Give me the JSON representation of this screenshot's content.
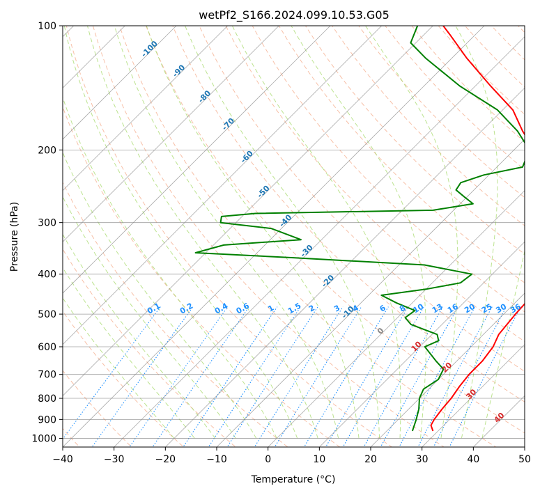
{
  "chart_data": {
    "type": "line",
    "subtype": "skew-t log-p diagram",
    "title": "wetPf2_S166.2024.099.10.53.G05",
    "xlabel": "Temperature (°C)",
    "ylabel": "Pressure (hPa)",
    "xlim": [
      -40,
      50
    ],
    "ylim": [
      1050,
      100
    ],
    "y_scale": "log",
    "x_ticks": [
      -40,
      -30,
      -20,
      -10,
      0,
      10,
      20,
      30,
      40,
      50
    ],
    "y_ticks": [
      100,
      200,
      300,
      400,
      500,
      600,
      700,
      800,
      900,
      1000
    ],
    "grid": true,
    "series": [
      {
        "color": "#ff0000",
        "points": [
          {
            "p": 960,
            "t": 29.0
          },
          {
            "p": 930,
            "t": 27.5
          },
          {
            "p": 900,
            "t": 27.0
          },
          {
            "p": 850,
            "t": 26.5
          },
          {
            "p": 800,
            "t": 26.2
          },
          {
            "p": 750,
            "t": 25.5
          },
          {
            "p": 700,
            "t": 25.0
          },
          {
            "p": 650,
            "t": 25.0
          },
          {
            "p": 600,
            "t": 24.3
          },
          {
            "p": 560,
            "t": 23.0
          },
          {
            "p": 500,
            "t": 22.3
          },
          {
            "p": 460,
            "t": 22.0
          },
          {
            "p": 430,
            "t": 21.5
          },
          {
            "p": 400,
            "t": 18.5
          },
          {
            "p": 370,
            "t": 17.8
          },
          {
            "p": 340,
            "t": 17.0
          },
          {
            "p": 300,
            "t": 13.8
          },
          {
            "p": 280,
            "t": 12.0
          },
          {
            "p": 250,
            "t": 5.5
          },
          {
            "p": 220,
            "t": -2.0
          },
          {
            "p": 200,
            "t": -6.0
          },
          {
            "p": 180,
            "t": -12.0
          },
          {
            "p": 160,
            "t": -18.0
          },
          {
            "p": 140,
            "t": -27.0
          },
          {
            "p": 120,
            "t": -37.0
          },
          {
            "p": 105,
            "t": -45.0
          },
          {
            "p": 100,
            "t": -48.0
          }
        ]
      },
      {
        "color": "#008000",
        "points": [
          {
            "p": 960,
            "t": 25.0
          },
          {
            "p": 900,
            "t": 23.5
          },
          {
            "p": 850,
            "t": 22.0
          },
          {
            "p": 800,
            "t": 20.0
          },
          {
            "p": 760,
            "t": 19.0
          },
          {
            "p": 720,
            "t": 20.0
          },
          {
            "p": 680,
            "t": 19.0
          },
          {
            "p": 650,
            "t": 16.0
          },
          {
            "p": 600,
            "t": 11.0
          },
          {
            "p": 580,
            "t": 12.5
          },
          {
            "p": 560,
            "t": 11.0
          },
          {
            "p": 530,
            "t": 4.0
          },
          {
            "p": 510,
            "t": 1.5
          },
          {
            "p": 490,
            "t": 2.0
          },
          {
            "p": 470,
            "t": -3.0
          },
          {
            "p": 450,
            "t": -7.5
          },
          {
            "p": 435,
            "t": 0.0
          },
          {
            "p": 420,
            "t": 5.5
          },
          {
            "p": 400,
            "t": 6.0
          },
          {
            "p": 380,
            "t": -5.0
          },
          {
            "p": 365,
            "t": -32.0
          },
          {
            "p": 355,
            "t": -52.0
          },
          {
            "p": 340,
            "t": -48.0
          },
          {
            "p": 330,
            "t": -34.0
          },
          {
            "p": 310,
            "t": -42.0
          },
          {
            "p": 300,
            "t": -53.0
          },
          {
            "p": 290,
            "t": -54.0
          },
          {
            "p": 285,
            "t": -48.0
          },
          {
            "p": 280,
            "t": -14.0
          },
          {
            "p": 270,
            "t": -7.5
          },
          {
            "p": 260,
            "t": -10.5
          },
          {
            "p": 250,
            "t": -13.5
          },
          {
            "p": 240,
            "t": -14.0
          },
          {
            "p": 230,
            "t": -11.0
          },
          {
            "p": 220,
            "t": -5.0
          },
          {
            "p": 200,
            "t": -7.0
          },
          {
            "p": 180,
            "t": -13.0
          },
          {
            "p": 160,
            "t": -21.0
          },
          {
            "p": 140,
            "t": -33.0
          },
          {
            "p": 120,
            "t": -45.0
          },
          {
            "p": 110,
            "t": -51.0
          },
          {
            "p": 100,
            "t": -53.0
          }
        ]
      }
    ],
    "isotherm_labels": {
      "values": [
        "-100",
        "-90",
        "-80",
        "-70",
        "-60",
        "-50",
        "-40",
        "-30",
        "-20",
        "-10",
        "0",
        "10",
        "20",
        "30",
        "40"
      ],
      "cold_color": "#1f77b4",
      "zero_color": "#888888",
      "warm_color": "#d62728"
    },
    "mixing_ratio_labels": {
      "values": [
        "0.1",
        "0.2",
        "0.4",
        "0.6",
        "1",
        "1.5",
        "2",
        "3",
        "4",
        "6",
        "8",
        "10",
        "13",
        "16",
        "20",
        "25",
        "30",
        "36"
      ],
      "color": "#1e90ff"
    },
    "colors": {
      "isotherm": "#888888",
      "dry_adiabat": "#f4a582",
      "moist_adiabat": "#a6d96a",
      "mixing_ratio": "#1e90ff",
      "outer_arc": "#d2b48c"
    }
  }
}
